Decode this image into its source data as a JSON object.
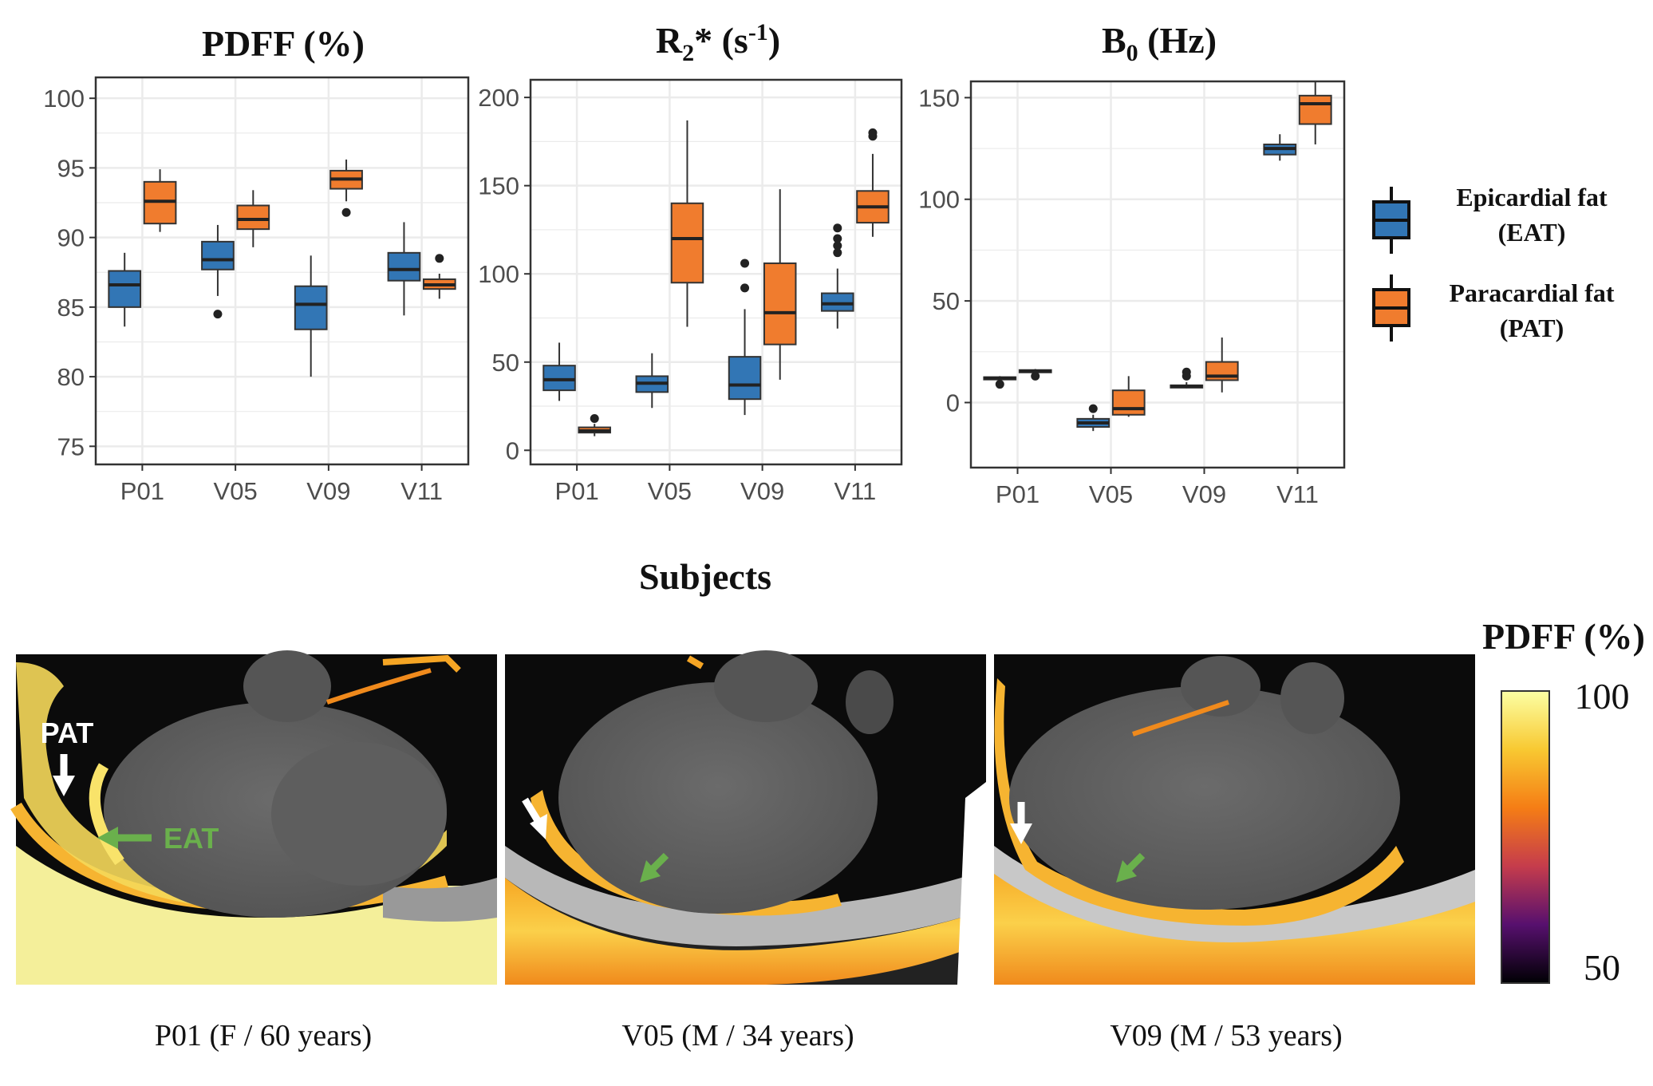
{
  "colors": {
    "eat": "#3276b5",
    "pat": "#f07c2e",
    "grid": "#ebebeb",
    "panel_border": "#333333",
    "green_arrow": "#6ab04c"
  },
  "xlabel": "Subjects",
  "chart_data": [
    {
      "type": "box",
      "title": "PDFF (%)",
      "categories": [
        "P01",
        "V05",
        "V09",
        "V11"
      ],
      "ylim": [
        73.7,
        101.5
      ],
      "yticks": [
        75,
        80,
        85,
        90,
        95,
        100
      ],
      "series": [
        {
          "name": "Epicardial fat (EAT)",
          "color_key": "eat",
          "boxes": [
            {
              "min": 83.6,
              "q1": 85.0,
              "median": 86.6,
              "q3": 87.6,
              "max": 88.9,
              "outliers": []
            },
            {
              "min": 85.8,
              "q1": 87.7,
              "median": 88.4,
              "q3": 89.7,
              "max": 90.9,
              "outliers": [
                84.5
              ]
            },
            {
              "min": 80.0,
              "q1": 83.4,
              "median": 85.2,
              "q3": 86.5,
              "max": 88.7,
              "outliers": []
            },
            {
              "min": 84.4,
              "q1": 86.9,
              "median": 87.7,
              "q3": 88.9,
              "max": 91.1,
              "outliers": []
            }
          ]
        },
        {
          "name": "Paracardial fat (PAT)",
          "color_key": "pat",
          "boxes": [
            {
              "min": 90.4,
              "q1": 91.0,
              "median": 92.6,
              "q3": 94.0,
              "max": 94.9,
              "outliers": []
            },
            {
              "min": 89.3,
              "q1": 90.6,
              "median": 91.3,
              "q3": 92.3,
              "max": 93.4,
              "outliers": []
            },
            {
              "min": 92.6,
              "q1": 93.5,
              "median": 94.2,
              "q3": 94.8,
              "max": 95.6,
              "outliers": [
                91.8
              ]
            },
            {
              "min": 85.6,
              "q1": 86.3,
              "median": 86.6,
              "q3": 87.0,
              "max": 87.4,
              "outliers": [
                88.5
              ]
            }
          ]
        }
      ]
    },
    {
      "type": "box",
      "title": "R2* (s-1)",
      "categories": [
        "P01",
        "V05",
        "V09",
        "V11"
      ],
      "ylim": [
        -8,
        210
      ],
      "yticks": [
        0,
        50,
        100,
        150,
        200
      ],
      "series": [
        {
          "name": "Epicardial fat (EAT)",
          "color_key": "eat",
          "boxes": [
            {
              "min": 28,
              "q1": 34,
              "median": 40,
              "q3": 48,
              "max": 61,
              "outliers": []
            },
            {
              "min": 24,
              "q1": 33,
              "median": 38,
              "q3": 42,
              "max": 55,
              "outliers": []
            },
            {
              "min": 20,
              "q1": 29,
              "median": 37,
              "q3": 53,
              "max": 80,
              "outliers": [
                92,
                106
              ]
            },
            {
              "min": 69,
              "q1": 79,
              "median": 83,
              "q3": 89,
              "max": 103,
              "outliers": [
                112,
                116,
                120,
                126
              ]
            }
          ]
        },
        {
          "name": "Paracardial fat (PAT)",
          "color_key": "pat",
          "boxes": [
            {
              "min": 8,
              "q1": 10,
              "median": 11,
              "q3": 13,
              "max": 15,
              "outliers": [
                18
              ]
            },
            {
              "min": 70,
              "q1": 95,
              "median": 120,
              "q3": 140,
              "max": 187,
              "outliers": []
            },
            {
              "min": 40,
              "q1": 60,
              "median": 78,
              "q3": 106,
              "max": 148,
              "outliers": []
            },
            {
              "min": 121,
              "q1": 129,
              "median": 138,
              "q3": 147,
              "max": 168,
              "outliers": [
                178,
                180
              ]
            }
          ]
        }
      ]
    },
    {
      "type": "box",
      "title": "B0 (Hz)",
      "categories": [
        "P01",
        "V05",
        "V09",
        "V11"
      ],
      "ylim": [
        -32,
        158
      ],
      "yticks": [
        0,
        50,
        100,
        150
      ],
      "series": [
        {
          "name": "Epicardial fat (EAT)",
          "color_key": "eat",
          "boxes": [
            {
              "min": 11,
              "q1": 11.5,
              "median": 12,
              "q3": 12.5,
              "max": 13,
              "outliers": [
                9
              ]
            },
            {
              "min": -14,
              "q1": -12,
              "median": -10,
              "q3": -8,
              "max": -6,
              "outliers": [
                -3
              ]
            },
            {
              "min": 7,
              "q1": 7.5,
              "median": 8,
              "q3": 8.5,
              "max": 10,
              "outliers": [
                13,
                15
              ]
            },
            {
              "min": 119,
              "q1": 122,
              "median": 125,
              "q3": 127,
              "max": 132,
              "outliers": []
            }
          ]
        },
        {
          "name": "Paracardial fat (PAT)",
          "color_key": "pat",
          "boxes": [
            {
              "min": 14,
              "q1": 15,
              "median": 15.5,
              "q3": 16,
              "max": 16.5,
              "outliers": [
                13
              ]
            },
            {
              "min": -7,
              "q1": -6,
              "median": -3,
              "q3": 6,
              "max": 13,
              "outliers": []
            },
            {
              "min": 5,
              "q1": 11,
              "median": 13,
              "q3": 20,
              "max": 32,
              "outliers": []
            },
            {
              "min": 127,
              "q1": 137,
              "median": 147,
              "q3": 151,
              "max": 158,
              "outliers": []
            }
          ]
        }
      ]
    }
  ],
  "legend": {
    "eat_line1": "Epicardial fat",
    "eat_line2": "(EAT)",
    "pat_line1": "Paracardial fat",
    "pat_line2": "(PAT)"
  },
  "images": {
    "captions": [
      "P01 (F / 60 years)",
      "V05 (M / 34 years)",
      "V09 (M / 53 years)"
    ],
    "pat_label": "PAT",
    "eat_label": "EAT"
  },
  "colorbar": {
    "title": "PDFF (%)",
    "max_label": "100",
    "min_label": "50"
  }
}
